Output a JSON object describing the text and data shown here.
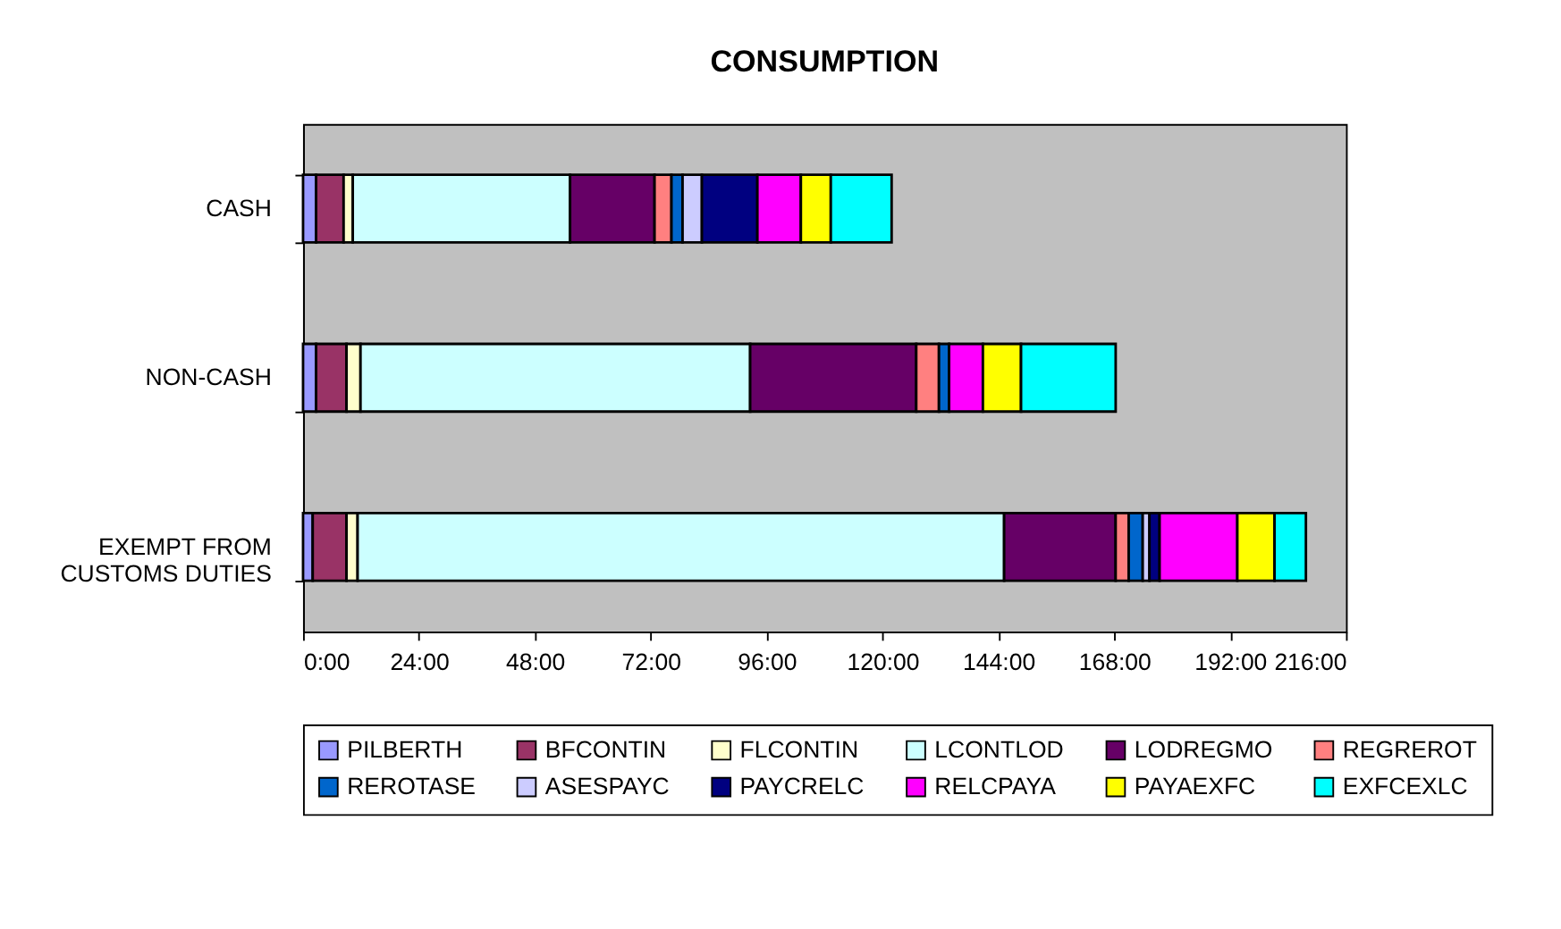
{
  "chart_data": {
    "type": "bar",
    "orientation": "horizontal",
    "stacked": true,
    "title": "CONSUMPTION",
    "categories": [
      "CASH",
      "NON-CASH",
      "EXEMPT FROM\nCUSTOMS DUTIES"
    ],
    "xlim": [
      0,
      216
    ],
    "xticks": [
      {
        "value": 0,
        "label": "0:00"
      },
      {
        "value": 24,
        "label": "24:00"
      },
      {
        "value": 48,
        "label": "48:00"
      },
      {
        "value": 72,
        "label": "72:00"
      },
      {
        "value": 96,
        "label": "96:00"
      },
      {
        "value": 120,
        "label": "120:00"
      },
      {
        "value": 144,
        "label": "144:00"
      },
      {
        "value": 168,
        "label": "168:00"
      },
      {
        "value": 192,
        "label": "192:00"
      },
      {
        "value": 216,
        "label": "216:00"
      }
    ],
    "grid": false,
    "legend": "bottom",
    "series": [
      {
        "name": "PILBERTH",
        "color": "#9999ff",
        "values": [
          2.7,
          2.7,
          2.0
        ]
      },
      {
        "name": "BFCONTIN",
        "color": "#993366",
        "values": [
          5.7,
          6.3,
          7.0
        ]
      },
      {
        "name": "FLCONTIN",
        "color": "#ffffcc",
        "values": [
          1.9,
          2.9,
          2.3
        ]
      },
      {
        "name": "LCONTLOD",
        "color": "#ccffff",
        "values": [
          45.0,
          80.7,
          133.9
        ]
      },
      {
        "name": "LODREGMO",
        "color": "#660066",
        "values": [
          17.5,
          34.4,
          23.1
        ]
      },
      {
        "name": "REGREROT",
        "color": "#ff8080",
        "values": [
          3.5,
          4.7,
          2.7
        ]
      },
      {
        "name": "REROTASE",
        "color": "#0066cc",
        "values": [
          2.3,
          2.1,
          2.9
        ]
      },
      {
        "name": "ASESPAYC",
        "color": "#ccccff",
        "values": [
          4.0,
          null,
          1.4
        ]
      },
      {
        "name": "PAYCRELC",
        "color": "#000080",
        "values": [
          11.5,
          null,
          2.1
        ]
      },
      {
        "name": "RELCPAYA",
        "color": "#ff00ff",
        "values": [
          9.0,
          7.0,
          16.1
        ]
      },
      {
        "name": "PAYAEXFC",
        "color": "#ffff00",
        "values": [
          6.2,
          7.9,
          7.7
        ]
      },
      {
        "name": "EXFCEXLC",
        "color": "#00ffff",
        "values": [
          12.6,
          19.6,
          6.5
        ]
      }
    ]
  }
}
